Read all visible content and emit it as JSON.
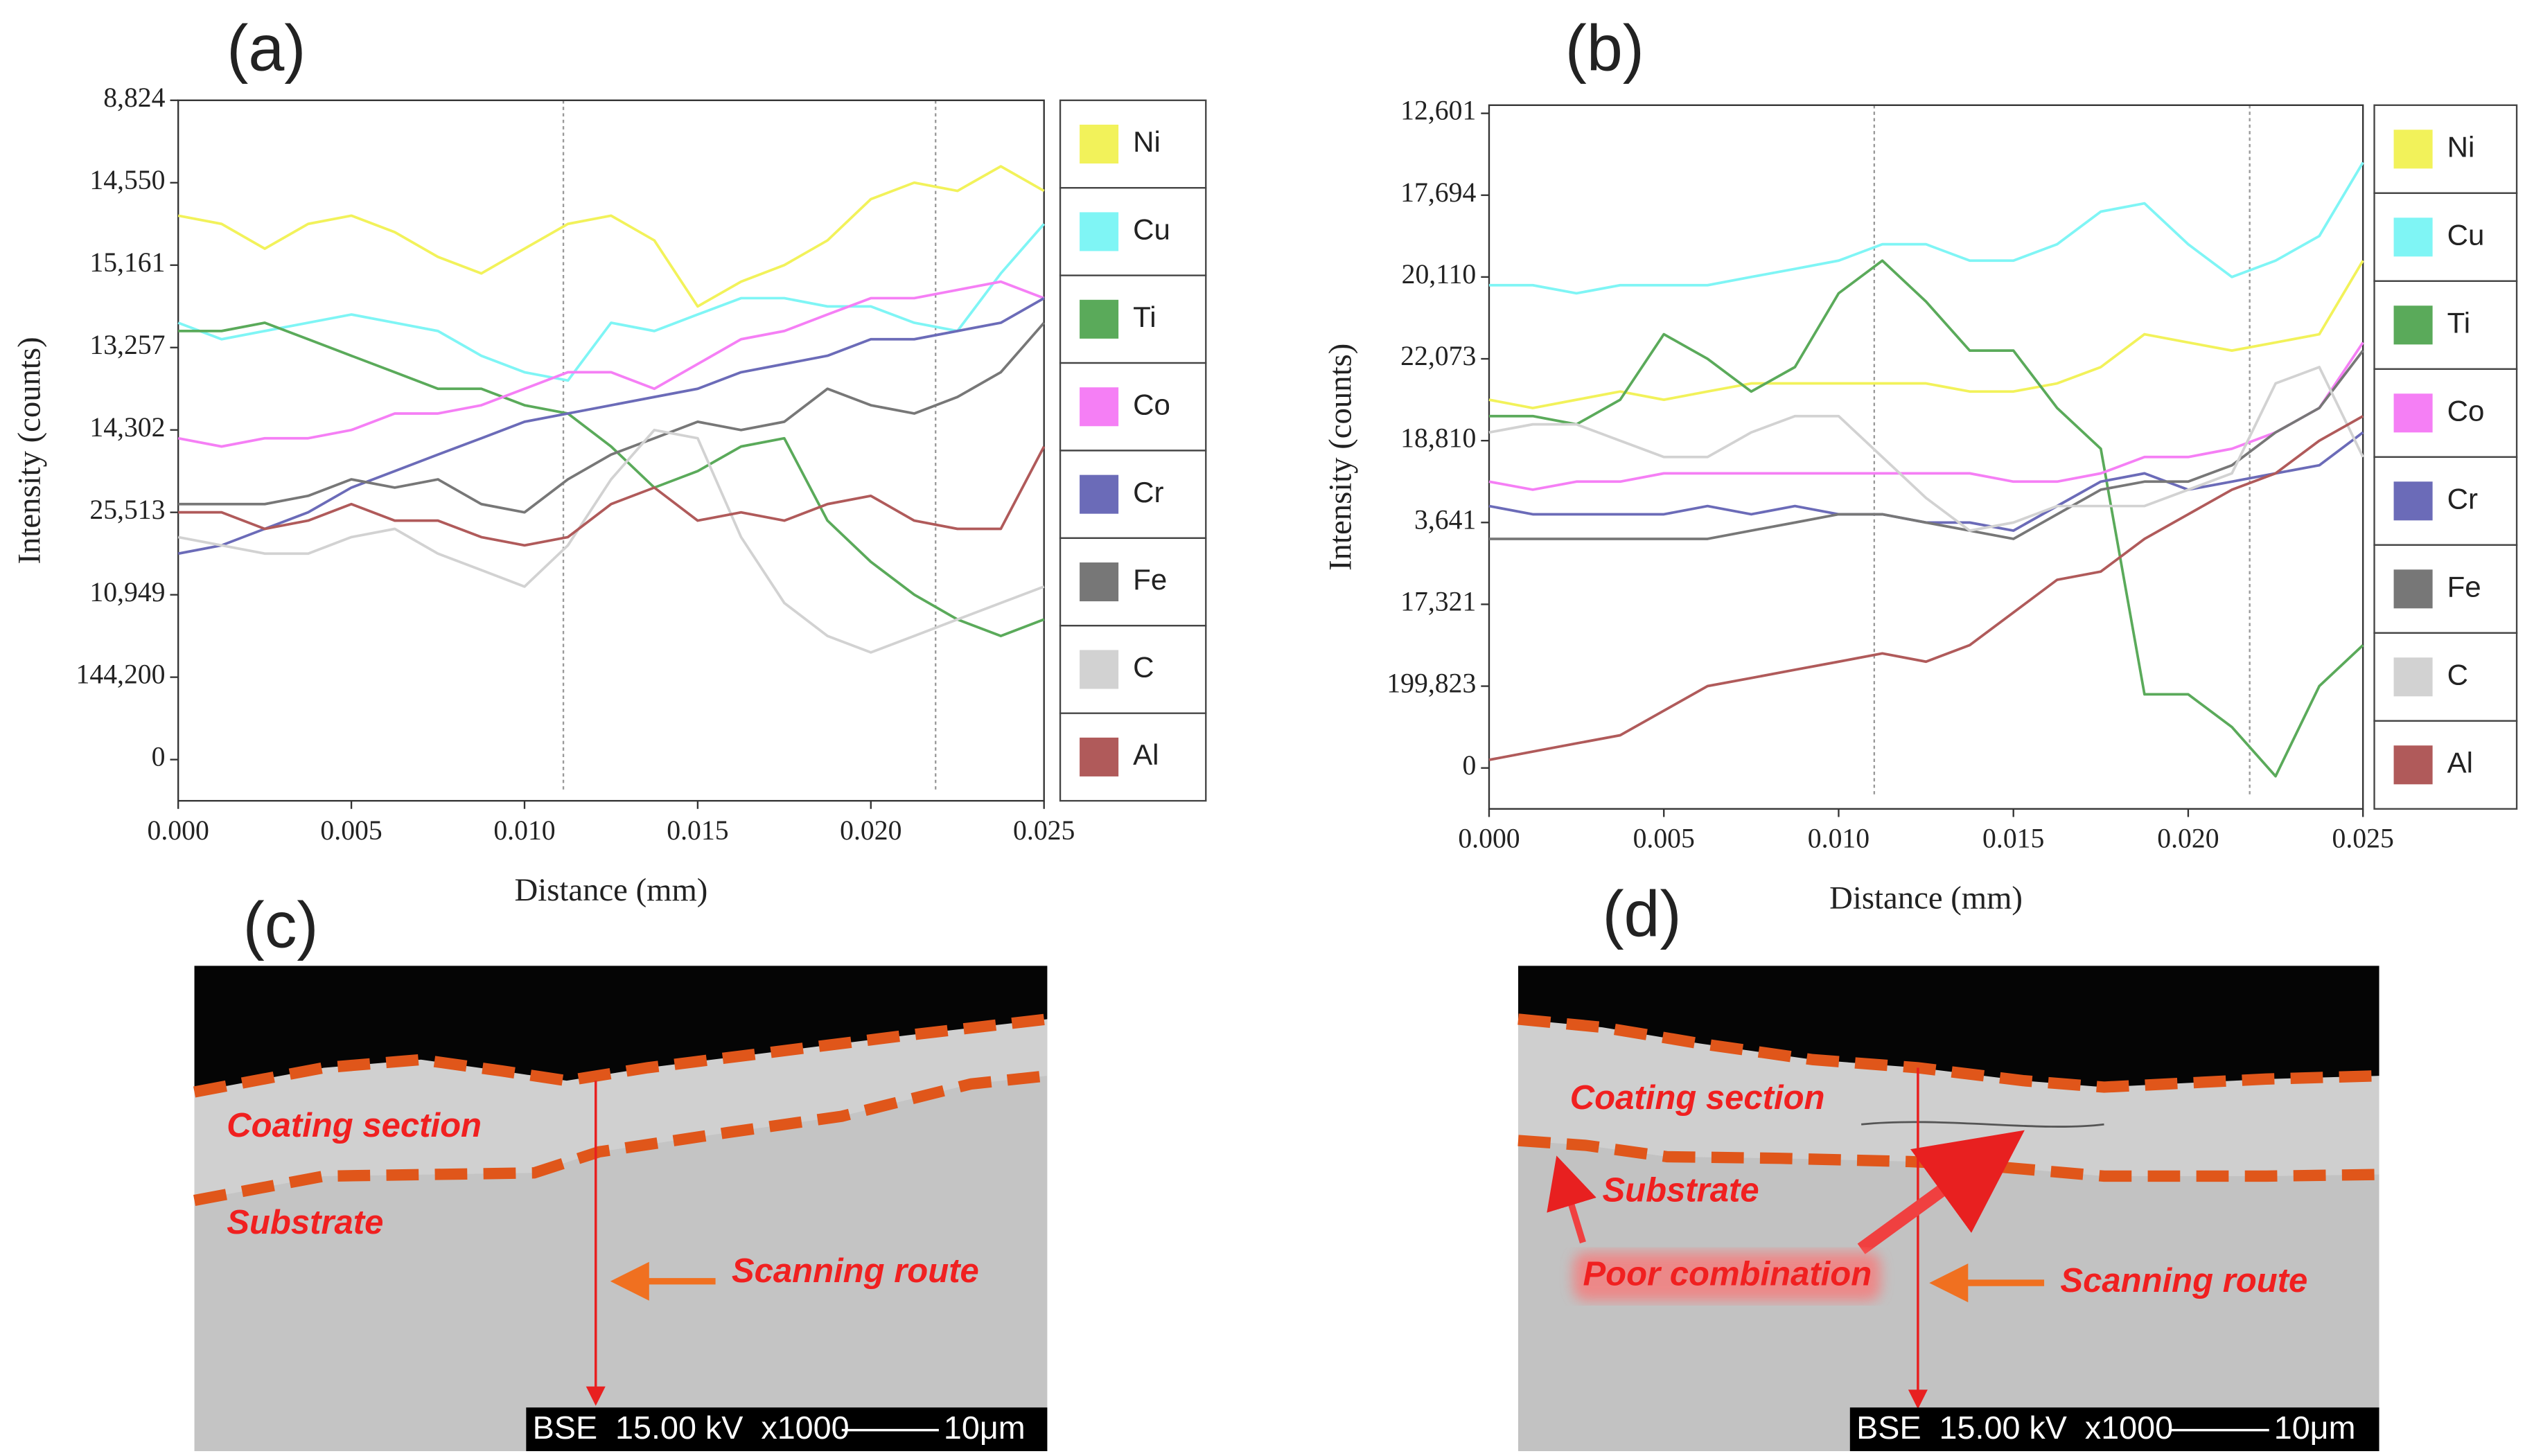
{
  "chart_data": [
    {
      "type": "line",
      "label": "(a)",
      "xlabel": "Distance (mm)",
      "ylabel": "Intensity (counts)",
      "x": [
        0,
        0.00125,
        0.0025,
        0.00375,
        0.005,
        0.00625,
        0.0075,
        0.00875,
        0.01,
        0.01125,
        0.0125,
        0.01375,
        0.015,
        0.01625,
        0.0175,
        0.01875,
        0.02,
        0.02125,
        0.0225,
        0.02375,
        0.025
      ],
      "xlim": [
        0,
        0.025
      ],
      "xticks": [
        {
          "value": 0,
          "label": "0.000"
        },
        {
          "value": 0.005,
          "label": "0.005"
        },
        {
          "value": 0.01,
          "label": "0.010"
        },
        {
          "value": 0.015,
          "label": "0.015"
        },
        {
          "value": 0.02,
          "label": "0.020"
        },
        {
          "value": 0.025,
          "label": "0.025"
        }
      ],
      "ylim": [
        -0.5,
        8
      ],
      "yticks": [
        {
          "value": 8,
          "label": "8,824"
        },
        {
          "value": 7,
          "label": "14,550"
        },
        {
          "value": 6,
          "label": "15,161"
        },
        {
          "value": 5,
          "label": "13,257"
        },
        {
          "value": 4,
          "label": "14,302"
        },
        {
          "value": 3,
          "label": "25,513"
        },
        {
          "value": 2,
          "label": "10,949"
        },
        {
          "value": 1,
          "label": "144,200"
        },
        0
      ],
      "series": [
        {
          "name": "Ni",
          "color": "#f2f25a",
          "values": [
            6.6,
            6.5,
            6.2,
            6.5,
            6.6,
            6.4,
            6.1,
            5.9,
            6.2,
            6.5,
            6.6,
            6.3,
            5.5,
            5.8,
            6.0,
            6.3,
            6.8,
            7.0,
            6.9,
            7.2,
            6.9
          ]
        },
        {
          "name": "Cu",
          "color": "#7ff5f5",
          "values": [
            5.3,
            5.1,
            5.2,
            5.3,
            5.4,
            5.3,
            5.2,
            4.9,
            4.7,
            4.6,
            5.3,
            5.2,
            5.4,
            5.6,
            5.6,
            5.5,
            5.5,
            5.3,
            5.2,
            5.9,
            6.5
          ]
        },
        {
          "name": "Ti",
          "color": "#5aaa5a",
          "values": [
            5.2,
            5.2,
            5.3,
            5.1,
            4.9,
            4.7,
            4.5,
            4.5,
            4.3,
            4.2,
            3.8,
            3.3,
            3.5,
            3.8,
            3.9,
            2.9,
            2.4,
            2.0,
            1.7,
            1.5,
            1.7
          ]
        },
        {
          "name": "Co",
          "color": "#f57ff5",
          "values": [
            3.9,
            3.8,
            3.9,
            3.9,
            4.0,
            4.2,
            4.2,
            4.3,
            4.5,
            4.7,
            4.7,
            4.5,
            4.8,
            5.1,
            5.2,
            5.4,
            5.6,
            5.6,
            5.7,
            5.8,
            5.6
          ]
        },
        {
          "name": "Cr",
          "color": "#6b6bb8",
          "values": [
            2.5,
            2.6,
            2.8,
            3.0,
            3.3,
            3.5,
            3.7,
            3.9,
            4.1,
            4.2,
            4.3,
            4.4,
            4.5,
            4.7,
            4.8,
            4.9,
            5.1,
            5.1,
            5.2,
            5.3,
            5.6
          ]
        },
        {
          "name": "Fe",
          "color": "#777777",
          "values": [
            3.1,
            3.1,
            3.1,
            3.2,
            3.4,
            3.3,
            3.4,
            3.1,
            3.0,
            3.4,
            3.7,
            3.9,
            4.1,
            4.0,
            4.1,
            4.5,
            4.3,
            4.2,
            4.4,
            4.7,
            5.3
          ]
        },
        {
          "name": "C",
          "color": "#d2d2d2",
          "values": [
            2.7,
            2.6,
            2.5,
            2.5,
            2.7,
            2.8,
            2.5,
            2.3,
            2.1,
            2.6,
            3.4,
            4.0,
            3.9,
            2.7,
            1.9,
            1.5,
            1.3,
            1.5,
            1.7,
            1.9,
            2.1
          ]
        },
        {
          "name": "Al",
          "color": "#b05a5a",
          "values": [
            3.0,
            3.0,
            2.8,
            2.9,
            3.1,
            2.9,
            2.9,
            2.7,
            2.6,
            2.7,
            3.1,
            3.3,
            2.9,
            3.0,
            2.9,
            3.1,
            3.2,
            2.9,
            2.8,
            2.8,
            3.8
          ]
        }
      ]
    },
    {
      "type": "line",
      "label": "(b)",
      "xlabel": "Distance (mm)",
      "ylabel": "Intensity (counts)",
      "x": [
        0,
        0.00125,
        0.0025,
        0.00375,
        0.005,
        0.00625,
        0.0075,
        0.00875,
        0.01,
        0.01125,
        0.0125,
        0.01375,
        0.015,
        0.01625,
        0.0175,
        0.01875,
        0.02,
        0.02125,
        0.0225,
        0.02375,
        0.025
      ],
      "xlim": [
        0,
        0.025
      ],
      "xticks": [
        {
          "value": 0,
          "label": "0.000"
        },
        {
          "value": 0.005,
          "label": "0.005"
        },
        {
          "value": 0.01,
          "label": "0.010"
        },
        {
          "value": 0.015,
          "label": "0.015"
        },
        {
          "value": 0.02,
          "label": "0.020"
        },
        {
          "value": 0.025,
          "label": "0.025"
        }
      ],
      "ylim": [
        -0.5,
        8.1
      ],
      "yticks": [
        {
          "value": 8,
          "label": "12,601"
        },
        {
          "value": 7,
          "label": "17,694"
        },
        {
          "value": 6,
          "label": "20,110"
        },
        {
          "value": 5,
          "label": "22,073"
        },
        {
          "value": 4,
          "label": "18,810"
        },
        {
          "value": 3,
          "label": "3,641"
        },
        {
          "value": 2,
          "label": "17,321"
        },
        {
          "value": 1,
          "label": "199,823"
        },
        0
      ],
      "series": [
        {
          "name": "Ni",
          "color": "#f2f25a",
          "values": [
            4.5,
            4.4,
            4.5,
            4.6,
            4.5,
            4.6,
            4.7,
            4.7,
            4.7,
            4.7,
            4.7,
            4.6,
            4.6,
            4.7,
            4.9,
            5.3,
            5.2,
            5.1,
            5.2,
            5.3,
            6.2
          ]
        },
        {
          "name": "Cu",
          "color": "#7ff5f5",
          "values": [
            5.9,
            5.9,
            5.8,
            5.9,
            5.9,
            5.9,
            6.0,
            6.1,
            6.2,
            6.4,
            6.4,
            6.2,
            6.2,
            6.4,
            6.8,
            6.9,
            6.4,
            6.0,
            6.2,
            6.5,
            7.4
          ]
        },
        {
          "name": "Ti",
          "color": "#5aaa5a",
          "values": [
            4.3,
            4.3,
            4.2,
            4.5,
            5.3,
            5.0,
            4.6,
            4.9,
            5.8,
            6.2,
            5.7,
            5.1,
            5.1,
            4.4,
            3.9,
            0.9,
            0.9,
            0.5,
            -0.1,
            1.0,
            1.5
          ]
        },
        {
          "name": "Co",
          "color": "#f57ff5",
          "values": [
            3.5,
            3.4,
            3.5,
            3.5,
            3.6,
            3.6,
            3.6,
            3.6,
            3.6,
            3.6,
            3.6,
            3.6,
            3.5,
            3.5,
            3.6,
            3.8,
            3.8,
            3.9,
            4.1,
            4.4,
            5.2
          ]
        },
        {
          "name": "Cr",
          "color": "#6b6bb8",
          "values": [
            3.2,
            3.1,
            3.1,
            3.1,
            3.1,
            3.2,
            3.1,
            3.2,
            3.1,
            3.1,
            3.0,
            3.0,
            2.9,
            3.2,
            3.5,
            3.6,
            3.4,
            3.5,
            3.6,
            3.7,
            4.1
          ]
        },
        {
          "name": "Fe",
          "color": "#777777",
          "values": [
            2.8,
            2.8,
            2.8,
            2.8,
            2.8,
            2.8,
            2.9,
            3.0,
            3.1,
            3.1,
            3.0,
            2.9,
            2.8,
            3.1,
            3.4,
            3.5,
            3.5,
            3.7,
            4.1,
            4.4,
            5.1
          ]
        },
        {
          "name": "C",
          "color": "#d2d2d2",
          "values": [
            4.1,
            4.2,
            4.2,
            4.0,
            3.8,
            3.8,
            4.1,
            4.3,
            4.3,
            3.8,
            3.3,
            2.9,
            3.0,
            3.2,
            3.2,
            3.2,
            3.4,
            3.6,
            4.7,
            4.9,
            3.8
          ]
        },
        {
          "name": "Al",
          "color": "#b05a5a",
          "values": [
            0.1,
            0.2,
            0.3,
            0.4,
            0.7,
            1.0,
            1.1,
            1.2,
            1.3,
            1.4,
            1.3,
            1.5,
            1.9,
            2.3,
            2.4,
            2.8,
            3.1,
            3.4,
            3.6,
            4.0,
            4.3
          ]
        }
      ]
    }
  ],
  "panels": [
    {
      "label": "(c)",
      "annotations": [
        "Coating section",
        "Substrate",
        "Scanning route"
      ],
      "scale_info": "BSE  15.00 kV  x1000",
      "scale_bar": "10μm"
    },
    {
      "label": "(d)",
      "annotations": [
        "Coating section",
        "Substrate",
        "Poor combination",
        "Scanning route"
      ],
      "scale_info": "BSE  15.00 kV  x1000",
      "scale_bar": "10μm"
    }
  ]
}
